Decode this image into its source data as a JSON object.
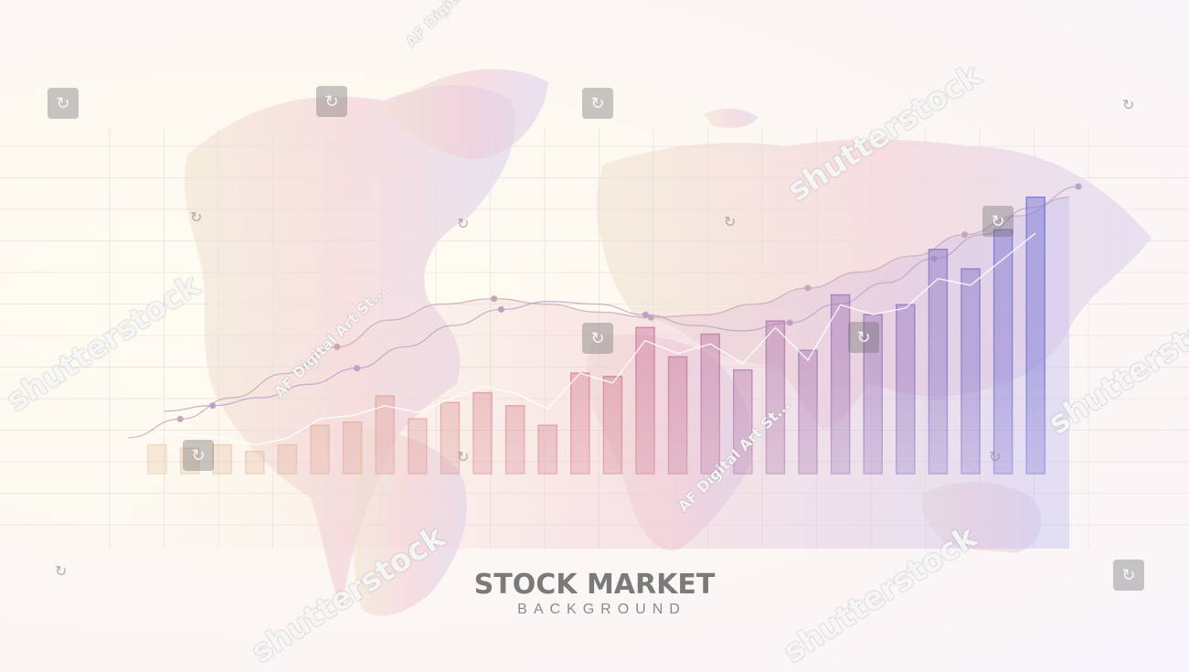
{
  "title": "STOCK MARKET",
  "subtitle": "BACKGROUND",
  "watermarks": {
    "brand": "shutterstock",
    "author": "AF Digital Art St..."
  },
  "chart_data": {
    "type": "bar",
    "bars": [
      6,
      5,
      6,
      4,
      6,
      12,
      13,
      21,
      14,
      19,
      22,
      18,
      12,
      28,
      27,
      42,
      33,
      40,
      29,
      44,
      35,
      52,
      46,
      49,
      66,
      60,
      72,
      82
    ],
    "trend_line": [
      10,
      9,
      8,
      6,
      8,
      14,
      15,
      18,
      16,
      20,
      24,
      22,
      17,
      28,
      25,
      38,
      34,
      37,
      31,
      42,
      32,
      49,
      46,
      48,
      57,
      55,
      63,
      71
    ],
    "curves": [
      [
        10,
        17,
        25,
        34,
        44,
        54,
        60,
        62,
        60,
        57,
        55,
        56,
        60,
        66,
        72,
        78,
        86,
        93,
        100
      ],
      [
        20,
        22,
        25,
        30,
        36,
        44,
        52,
        58,
        61,
        60,
        56,
        52,
        50,
        53,
        60,
        68,
        77,
        86,
        96,
        104
      ]
    ],
    "colors": {
      "start": "#e9c9a0",
      "mid": "#d77f95",
      "end": "#7c78d6"
    }
  }
}
